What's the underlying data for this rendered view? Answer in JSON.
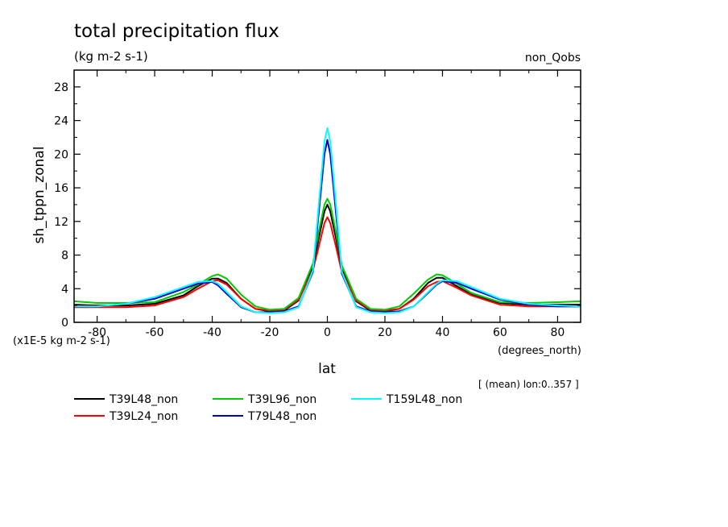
{
  "chart_data": {
    "type": "line",
    "title": "total precipitation flux",
    "units": "(kg m-2 s-1)",
    "experiment": "non_Qobs",
    "ylabel": "sh_tppn_zonal",
    "xlabel": "lat",
    "x_units": "(degrees_north)",
    "y_scale_note": "(x1E-5 kg m-2 s-1)",
    "averaging_note": "[ (mean) lon:0..357 ]",
    "xlim": [
      -88,
      88
    ],
    "ylim": [
      0,
      30
    ],
    "xticks": [
      -80,
      -60,
      -40,
      -20,
      0,
      20,
      40,
      60,
      80
    ],
    "yticks": [
      0,
      4,
      8,
      12,
      16,
      20,
      24,
      28
    ],
    "x": [
      -88,
      -80,
      -70,
      -60,
      -50,
      -45,
      -40,
      -38,
      -35,
      -30,
      -25,
      -20,
      -15,
      -10,
      -5,
      -3,
      -1,
      0,
      1,
      3,
      5,
      10,
      15,
      20,
      25,
      30,
      35,
      38,
      40,
      45,
      50,
      60,
      70,
      80,
      88
    ],
    "series": [
      {
        "name": "T39L48_non",
        "color": "#000000",
        "values": [
          2.1,
          2.0,
          2.0,
          2.2,
          3.2,
          4.3,
          5.2,
          5.2,
          4.7,
          2.8,
          1.6,
          1.3,
          1.4,
          2.6,
          6.5,
          10.0,
          13.2,
          14.0,
          13.2,
          10.0,
          6.3,
          2.5,
          1.4,
          1.3,
          1.6,
          2.8,
          4.7,
          5.3,
          5.3,
          4.3,
          3.3,
          2.3,
          2.1,
          2.1,
          2.1
        ]
      },
      {
        "name": "T39L24_non",
        "color": "#ff0000",
        "values": [
          1.8,
          1.8,
          1.8,
          2.0,
          3.0,
          4.0,
          4.9,
          5.0,
          4.5,
          2.8,
          1.6,
          1.4,
          1.5,
          2.7,
          6.2,
          9.0,
          11.8,
          12.5,
          11.8,
          9.0,
          6.0,
          2.6,
          1.5,
          1.4,
          1.6,
          2.7,
          4.3,
          4.8,
          4.9,
          4.1,
          3.2,
          2.1,
          1.9,
          1.9,
          1.9
        ]
      },
      {
        "name": "T39L96_non",
        "color": "#00cc00",
        "values": [
          2.5,
          2.3,
          2.3,
          2.4,
          3.6,
          4.5,
          5.5,
          5.7,
          5.2,
          3.3,
          1.9,
          1.5,
          1.6,
          2.9,
          7.0,
          10.8,
          14.0,
          14.7,
          14.0,
          10.7,
          6.8,
          2.8,
          1.6,
          1.5,
          1.9,
          3.4,
          5.1,
          5.7,
          5.6,
          4.6,
          3.5,
          2.4,
          2.3,
          2.4,
          2.5
        ]
      },
      {
        "name": "T79L48_non",
        "color": "#0000cc",
        "values": [
          1.9,
          1.9,
          2.2,
          2.8,
          4.0,
          4.6,
          4.8,
          4.4,
          3.4,
          1.8,
          1.2,
          1.2,
          1.3,
          1.9,
          6.0,
          13.0,
          20.0,
          21.7,
          20.0,
          13.0,
          5.8,
          1.9,
          1.3,
          1.2,
          1.3,
          1.9,
          3.5,
          4.5,
          4.9,
          4.7,
          4.0,
          2.7,
          2.1,
          1.9,
          1.9
        ]
      },
      {
        "name": "T159L48_non",
        "color": "#00ffff",
        "values": [
          1.9,
          1.9,
          2.2,
          3.0,
          4.2,
          4.8,
          4.9,
          4.6,
          3.6,
          1.9,
          1.2,
          1.1,
          1.2,
          1.8,
          6.2,
          14.0,
          21.5,
          23.1,
          21.5,
          14.0,
          6.0,
          1.8,
          1.2,
          1.1,
          1.2,
          1.9,
          3.6,
          4.6,
          5.0,
          4.9,
          4.2,
          2.8,
          2.2,
          2.0,
          1.9
        ]
      }
    ]
  }
}
